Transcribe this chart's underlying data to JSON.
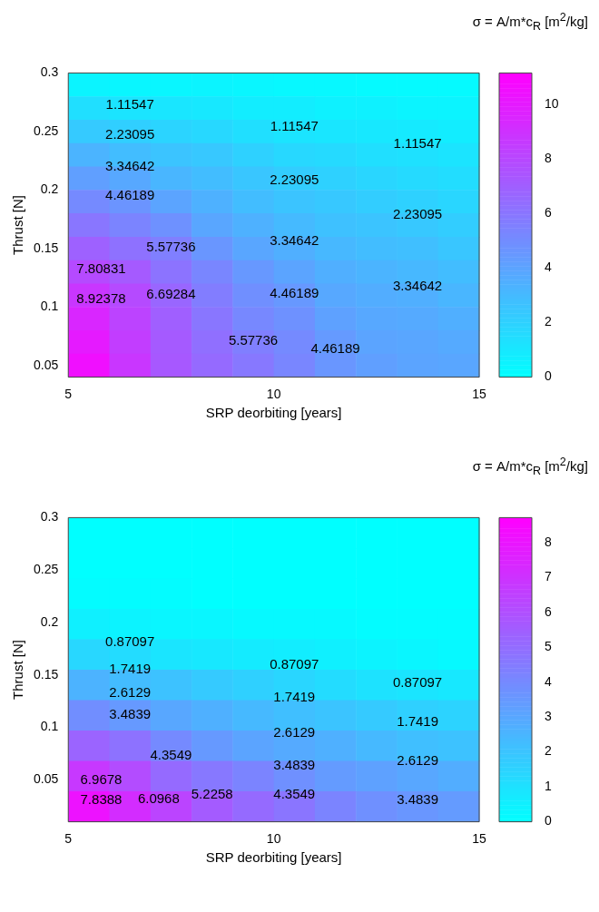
{
  "chart_data": [
    {
      "type": "heatmap",
      "xlabel": "SRP deorbiting [years]",
      "ylabel": "Thrust [N]",
      "clabel": "σ = A/m*c$_{R}$ [m$^{2}$/kg]",
      "xlim": [
        5,
        15
      ],
      "xticks": [
        5,
        10,
        15
      ],
      "ylim": [
        0.04,
        0.3
      ],
      "yticks": [
        0.05,
        0.1,
        0.15,
        0.2,
        0.25,
        0.3
      ],
      "clim": [
        0,
        11.15
      ],
      "cticks": [
        0,
        2,
        4,
        6,
        8,
        10
      ],
      "cells": [
        [
          0.5,
          0.4,
          0.4,
          0.5,
          0.4,
          0.3,
          0.3,
          0.2,
          0.2,
          0.2
        ],
        [
          1.4,
          1.2,
          1.1,
          1.0,
          0.8,
          0.8,
          0.6,
          0.6,
          0.5,
          0.5
        ],
        [
          2.3,
          2.1,
          1.9,
          1.7,
          1.4,
          1.2,
          1.1,
          1.0,
          0.9,
          0.8
        ],
        [
          3.3,
          2.9,
          2.6,
          2.4,
          2.0,
          1.7,
          1.6,
          1.4,
          1.3,
          1.2
        ],
        [
          4.2,
          3.8,
          3.2,
          2.9,
          2.5,
          2.2,
          2.0,
          1.8,
          1.6,
          1.5
        ],
        [
          5.1,
          4.7,
          4.0,
          3.4,
          2.9,
          2.6,
          2.4,
          2.2,
          2.0,
          1.8
        ],
        [
          6.0,
          5.4,
          4.8,
          3.9,
          3.4,
          3.0,
          2.7,
          2.6,
          2.4,
          2.2
        ],
        [
          6.9,
          6.2,
          5.6,
          4.6,
          3.9,
          3.5,
          3.1,
          2.9,
          2.8,
          2.5
        ],
        [
          7.9,
          7.2,
          6.1,
          5.3,
          4.5,
          4.0,
          3.5,
          3.3,
          3.1,
          2.9
        ],
        [
          8.8,
          7.9,
          6.7,
          5.7,
          4.9,
          4.5,
          3.8,
          3.6,
          3.5,
          3.2
        ],
        [
          9.5,
          8.2,
          7.0,
          6.0,
          5.2,
          4.8,
          4.1,
          3.8,
          3.7,
          3.5
        ],
        [
          10.0,
          8.5,
          7.2,
          6.3,
          5.6,
          5.1,
          4.4,
          4.0,
          3.9,
          3.7
        ],
        [
          10.5,
          8.8,
          7.3,
          6.5,
          5.9,
          5.3,
          4.6,
          4.2,
          4.0,
          3.9
        ]
      ],
      "annotations": [
        "1.11547",
        "1.11547",
        "1.11547",
        "2.23095",
        "2.23095",
        "2.23095",
        "3.34642",
        "3.34642",
        "3.34642",
        "4.46189",
        "4.46189",
        "4.46189",
        "5.57736",
        "5.57736",
        "6.69284",
        "7.80831",
        "8.92378"
      ]
    },
    {
      "type": "heatmap",
      "xlabel": "SRP deorbiting [years]",
      "ylabel": "Thrust [N]",
      "clabel": "σ = A/m*c$_{R}$ [m$^{2}$/kg]",
      "xlim": [
        5,
        15
      ],
      "xticks": [
        5,
        10,
        15
      ],
      "ylim": [
        0.01,
        0.3
      ],
      "yticks": [
        0.05,
        0.1,
        0.15,
        0.2,
        0.25,
        0.3
      ],
      "clim": [
        0,
        8.71
      ],
      "cticks": [
        0,
        1,
        2,
        3,
        4,
        5,
        6,
        7,
        8
      ],
      "cells": [
        [
          0,
          0,
          0,
          0,
          0,
          0,
          0,
          0,
          0,
          0
        ],
        [
          0,
          0,
          0,
          0,
          0,
          0,
          0,
          0,
          0,
          0
        ],
        [
          0.1,
          0.1,
          0.1,
          0,
          0,
          0,
          0,
          0,
          0,
          0
        ],
        [
          0.5,
          0.4,
          0.3,
          0.3,
          0.2,
          0.2,
          0.2,
          0.1,
          0.1,
          0.1
        ],
        [
          1.35,
          1.2,
          0.9,
          0.8,
          0.7,
          0.6,
          0.5,
          0.4,
          0.3,
          0.2
        ],
        [
          2.6,
          2.3,
          2.1,
          1.8,
          1.6,
          1.4,
          1.2,
          1.0,
          0.9,
          0.8
        ],
        [
          3.85,
          3.5,
          3.0,
          2.7,
          2.4,
          2.2,
          2.0,
          1.8,
          1.6,
          1.5
        ],
        [
          5.3,
          4.8,
          4.0,
          3.5,
          3.1,
          2.9,
          2.7,
          2.4,
          2.2,
          2.1
        ],
        [
          6.8,
          6.1,
          5.1,
          4.6,
          4.2,
          3.8,
          3.4,
          3.2,
          3.0,
          2.8
        ],
        [
          8.1,
          7.2,
          6.4,
          5.6,
          5.1,
          4.7,
          4.2,
          3.8,
          3.6,
          3.4
        ]
      ],
      "annotations": [
        "0.87097",
        "0.87097",
        "0.87097",
        "1.7419",
        "1.7419",
        "1.7419",
        "2.6129",
        "2.6129",
        "2.6129",
        "3.4839",
        "3.4839",
        "3.4839",
        "4.3549",
        "4.3549",
        "5.2258",
        "6.0968",
        "6.9678",
        "7.8388"
      ]
    }
  ]
}
